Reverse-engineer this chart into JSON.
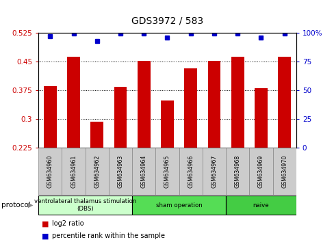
{
  "title": "GDS3972 / 583",
  "samples": [
    "GSM634960",
    "GSM634961",
    "GSM634962",
    "GSM634963",
    "GSM634964",
    "GSM634965",
    "GSM634966",
    "GSM634967",
    "GSM634968",
    "GSM634969",
    "GSM634970"
  ],
  "log2_ratio": [
    0.385,
    0.462,
    0.292,
    0.384,
    0.451,
    0.348,
    0.432,
    0.451,
    0.462,
    0.381,
    0.463
  ],
  "percentile_rank": [
    97,
    99,
    93,
    99,
    99,
    96,
    99,
    99,
    99,
    96,
    99
  ],
  "bar_color": "#cc0000",
  "dot_color": "#0000cc",
  "ylim_left": [
    0.225,
    0.525
  ],
  "ylim_right": [
    0,
    100
  ],
  "yticks_left": [
    0.225,
    0.3,
    0.375,
    0.45,
    0.525
  ],
  "yticks_right": [
    0,
    25,
    50,
    75,
    100
  ],
  "protocol_groups": [
    {
      "label": "ventrolateral thalamus stimulation\n(DBS)",
      "start": 0,
      "end": 3,
      "color": "#ccffcc"
    },
    {
      "label": "sham operation",
      "start": 4,
      "end": 7,
      "color": "#55dd55"
    },
    {
      "label": "naive",
      "start": 8,
      "end": 10,
      "color": "#44cc44"
    }
  ],
  "protocol_label": "protocol",
  "legend_log2": "log2 ratio",
  "legend_pct": "percentile rank within the sample",
  "background_color": "#ffffff"
}
